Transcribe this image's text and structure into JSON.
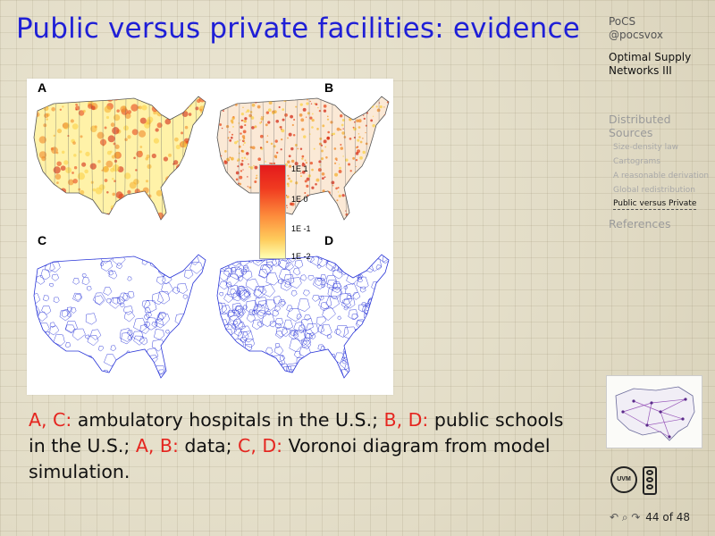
{
  "slide": {
    "title": "Public versus private facilities: evidence"
  },
  "figure": {
    "panels": [
      {
        "letter": "A"
      },
      {
        "letter": "B"
      },
      {
        "letter": "C"
      },
      {
        "letter": "D"
      }
    ],
    "colorbar": {
      "labels": [
        "1E 1",
        "1E 0",
        "1E -1",
        "1E -2"
      ],
      "colors": [
        "#e41a1c",
        "#fd8d3c",
        "#fecc5c",
        "#ffffb2"
      ]
    },
    "colors": {
      "heat": "#e8481c",
      "voronoi": "#2a36d8"
    }
  },
  "caption": {
    "part1_red": "A, C:",
    "part1_text": " ambulatory hospitals in the U.S.; ",
    "part2_red": "B, D:",
    "part2_text": " public schools in the U.S.; ",
    "part3_red": "A, B:",
    "part3_text": " data; ",
    "part4_red": "C, D:",
    "part4_text": " Voronoi diagram from model simulation."
  },
  "sidebar": {
    "course": "PoCS",
    "handle": "@pocsvox",
    "lecture_line1": "Optimal Supply",
    "lecture_line2": "Networks III",
    "section_line1": "Distributed",
    "section_line2": "Sources",
    "subsections": [
      "Size-density law",
      "Cartograms",
      "A reasonable derivation",
      "Global redistribution",
      "Public versus Private"
    ],
    "active_index": 4,
    "references": "References"
  },
  "navigation": {
    "symbols": "↶ ⌕ ↷",
    "page": "44 of 48"
  },
  "logos": {
    "uvm": "UVM"
  }
}
